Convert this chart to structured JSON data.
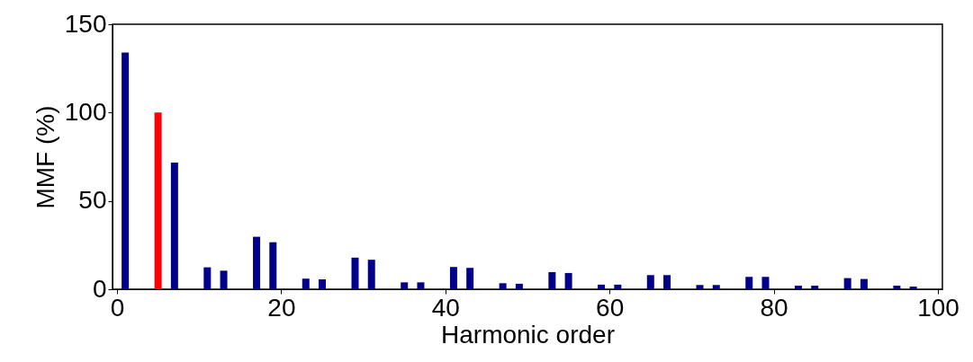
{
  "chart_data": {
    "type": "bar",
    "xlabel": "Harmonic order",
    "ylabel": "MMF (%)",
    "x": [
      1,
      5,
      7,
      11,
      13,
      17,
      19,
      23,
      25,
      29,
      31,
      35,
      37,
      41,
      43,
      47,
      49,
      53,
      55,
      59,
      61,
      65,
      67,
      71,
      73,
      77,
      79,
      83,
      85,
      89,
      91,
      95,
      97
    ],
    "values": [
      134,
      100,
      71.7,
      12.4,
      10.5,
      29.7,
      26.6,
      6,
      5.6,
      17.9,
      16.7,
      3.9,
      3.9,
      12.6,
      12.1,
      3.4,
      3.1,
      9.7,
      9.2,
      2.6,
      2.6,
      8,
      8,
      2.4,
      2.4,
      7,
      7,
      2,
      2,
      6.3,
      5.8,
      2,
      1.5
    ],
    "colors": [
      "#00008b",
      "#ff0000",
      "#00008b",
      "#00008b",
      "#00008b",
      "#00008b",
      "#00008b",
      "#00008b",
      "#00008b",
      "#00008b",
      "#00008b",
      "#00008b",
      "#00008b",
      "#00008b",
      "#00008b",
      "#00008b",
      "#00008b",
      "#00008b",
      "#00008b",
      "#00008b",
      "#00008b",
      "#00008b",
      "#00008b",
      "#00008b",
      "#00008b",
      "#00008b",
      "#00008b",
      "#00008b",
      "#00008b",
      "#00008b",
      "#00008b",
      "#00008b",
      "#00008b"
    ],
    "xlim": [
      0,
      100
    ],
    "xticks": [
      0,
      20,
      40,
      60,
      80,
      100
    ],
    "ylim": [
      0,
      150
    ],
    "yticks": [
      0,
      50,
      100,
      150
    ],
    "grid": false
  }
}
